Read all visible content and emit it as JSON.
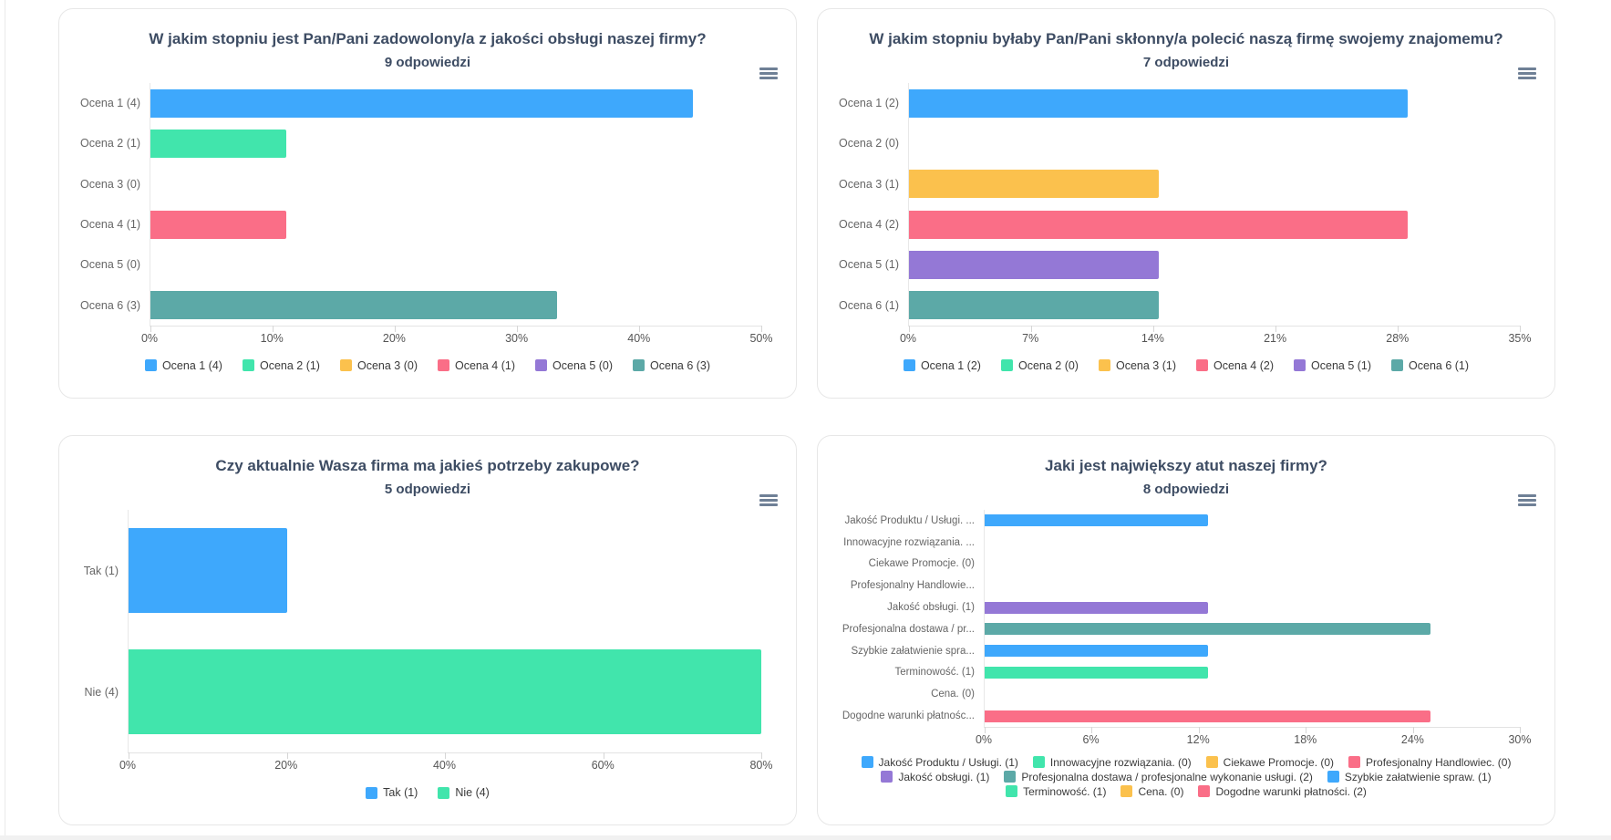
{
  "page": {
    "background": "#ffffff",
    "card_border": "#e7e7e7",
    "title_color": "#3d4c63",
    "axis_text_color": "#555555",
    "category_text_color": "#666666",
    "legend_text_color": "#3a3a3a",
    "menu_icon_color": "#6f8096"
  },
  "icons": {
    "card_menu": "hamburger-menu"
  },
  "palette": {
    "blue": "#3EA8FC",
    "green": "#41E5AC",
    "orange": "#FBC14D",
    "red": "#FA6E87",
    "purple": "#9478D6",
    "teal": "#5CA9A7"
  },
  "chart_data": [
    {
      "type": "bar",
      "orientation": "horizontal",
      "title": "W jakim stopniu jest Pan/Pani zadowolony/a z jakości obsługi naszej firmy?",
      "subtitle": "9 odpowiedzi",
      "xlim": [
        0,
        50
      ],
      "x_ticks": [
        "0%",
        "10%",
        "20%",
        "30%",
        "40%",
        "50%"
      ],
      "rows": [
        {
          "label": "Ocena 1 (4)",
          "value": 4,
          "pct": 44.4,
          "color": "blue"
        },
        {
          "label": "Ocena 2 (1)",
          "value": 1,
          "pct": 11.1,
          "color": "green"
        },
        {
          "label": "Ocena 3 (0)",
          "value": 0,
          "pct": 0,
          "color": "orange"
        },
        {
          "label": "Ocena 4 (1)",
          "value": 1,
          "pct": 11.1,
          "color": "red"
        },
        {
          "label": "Ocena 5 (0)",
          "value": 0,
          "pct": 0,
          "color": "purple"
        },
        {
          "label": "Ocena 6 (3)",
          "value": 3,
          "pct": 33.3,
          "color": "teal"
        }
      ],
      "legend_rows": [
        [
          {
            "label": "Ocena 1 (4)",
            "color": "blue"
          },
          {
            "label": "Ocena 2 (1)",
            "color": "green"
          },
          {
            "label": "Ocena 3 (0)",
            "color": "orange"
          },
          {
            "label": "Ocena 4 (1)",
            "color": "red"
          },
          {
            "label": "Ocena 5 (0)",
            "color": "purple"
          },
          {
            "label": "Ocena 6 (3)",
            "color": "teal"
          }
        ]
      ]
    },
    {
      "type": "bar",
      "orientation": "horizontal",
      "title": "W jakim stopniu byłaby Pan/Pani skłonny/a polecić naszą firmę swojemy znajomemu?",
      "subtitle": "7 odpowiedzi",
      "xlim": [
        0,
        35
      ],
      "x_ticks": [
        "0%",
        "7%",
        "14%",
        "21%",
        "28%",
        "35%"
      ],
      "rows": [
        {
          "label": "Ocena 1 (2)",
          "value": 2,
          "pct": 28.6,
          "color": "blue"
        },
        {
          "label": "Ocena 2 (0)",
          "value": 0,
          "pct": 0,
          "color": "green"
        },
        {
          "label": "Ocena 3 (1)",
          "value": 1,
          "pct": 14.3,
          "color": "orange"
        },
        {
          "label": "Ocena 4 (2)",
          "value": 2,
          "pct": 28.6,
          "color": "red"
        },
        {
          "label": "Ocena 5 (1)",
          "value": 1,
          "pct": 14.3,
          "color": "purple"
        },
        {
          "label": "Ocena 6 (1)",
          "value": 1,
          "pct": 14.3,
          "color": "teal"
        }
      ],
      "legend_rows": [
        [
          {
            "label": "Ocena 1 (2)",
            "color": "blue"
          },
          {
            "label": "Ocena 2 (0)",
            "color": "green"
          },
          {
            "label": "Ocena 3 (1)",
            "color": "orange"
          },
          {
            "label": "Ocena 4 (2)",
            "color": "red"
          },
          {
            "label": "Ocena 5 (1)",
            "color": "purple"
          },
          {
            "label": "Ocena 6 (1)",
            "color": "teal"
          }
        ]
      ]
    },
    {
      "type": "bar",
      "orientation": "horizontal",
      "title": "Czy aktualnie Wasza firma ma jakieś potrzeby zakupowe?",
      "subtitle": "5 odpowiedzi",
      "xlim": [
        0,
        80
      ],
      "x_ticks": [
        "0%",
        "20%",
        "40%",
        "60%",
        "80%"
      ],
      "rows": [
        {
          "label": "Tak (1)",
          "value": 1,
          "pct": 20,
          "color": "blue"
        },
        {
          "label": "Nie (4)",
          "value": 4,
          "pct": 80,
          "color": "green"
        }
      ],
      "legend_rows": [
        [
          {
            "label": "Tak (1)",
            "color": "blue"
          },
          {
            "label": "Nie (4)",
            "color": "green"
          }
        ]
      ]
    },
    {
      "type": "bar",
      "orientation": "horizontal",
      "title": "Jaki jest największy atut naszej firmy?",
      "subtitle": "8 odpowiedzi",
      "xlim": [
        0,
        30
      ],
      "x_ticks": [
        "0%",
        "6%",
        "12%",
        "18%",
        "24%",
        "30%"
      ],
      "rows": [
        {
          "label": "Jakość Produktu / Usługi. ...",
          "value": 1,
          "pct": 12.5,
          "color": "blue"
        },
        {
          "label": "Innowacyjne rozwiązania. ...",
          "value": 0,
          "pct": 0,
          "color": "green"
        },
        {
          "label": "Ciekawe Promocje. (0)",
          "value": 0,
          "pct": 0,
          "color": "orange"
        },
        {
          "label": "Profesjonalny Handlowie...",
          "value": 0,
          "pct": 0,
          "color": "red"
        },
        {
          "label": "Jakość obsługi. (1)",
          "value": 1,
          "pct": 12.5,
          "color": "purple"
        },
        {
          "label": "Profesjonalna dostawa / pr...",
          "value": 2,
          "pct": 25,
          "color": "teal"
        },
        {
          "label": "Szybkie załatwienie spra...",
          "value": 1,
          "pct": 12.5,
          "color": "blue"
        },
        {
          "label": "Terminowość. (1)",
          "value": 1,
          "pct": 12.5,
          "color": "green"
        },
        {
          "label": "Cena. (0)",
          "value": 0,
          "pct": 0,
          "color": "orange"
        },
        {
          "label": "Dogodne warunki płatnośc...",
          "value": 2,
          "pct": 25,
          "color": "red"
        }
      ],
      "legend_rows": [
        [
          {
            "label": "Jakość Produktu / Usługi. (1)",
            "color": "blue"
          },
          {
            "label": "Innowacyjne rozwiązania. (0)",
            "color": "green"
          },
          {
            "label": "Ciekawe Promocje. (0)",
            "color": "orange"
          },
          {
            "label": "Profesjonalny Handlowiec. (0)",
            "color": "red"
          }
        ],
        [
          {
            "label": "Jakość obsługi. (1)",
            "color": "purple"
          },
          {
            "label": "Profesjonalna dostawa / profesjonalne wykonanie usługi. (2)",
            "color": "teal"
          },
          {
            "label": "Szybkie załatwienie spraw. (1)",
            "color": "blue"
          }
        ],
        [
          {
            "label": "Terminowość. (1)",
            "color": "green"
          },
          {
            "label": "Cena. (0)",
            "color": "orange"
          },
          {
            "label": "Dogodne warunki płatności. (2)",
            "color": "red"
          }
        ]
      ]
    }
  ]
}
